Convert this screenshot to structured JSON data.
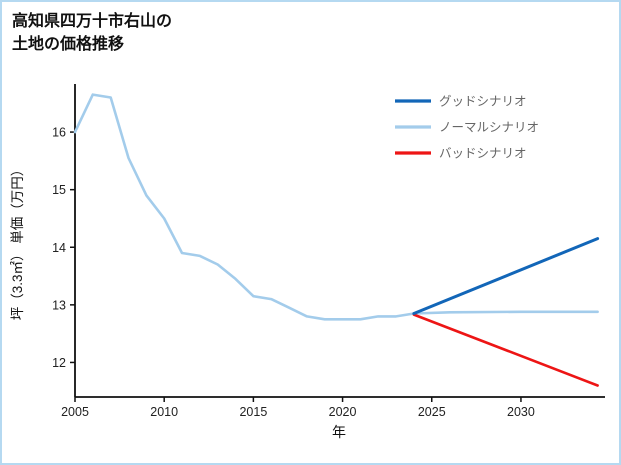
{
  "title": {
    "line1": "高知県四万十市右山の",
    "line2": "土地の価格推移"
  },
  "chart_data": {
    "type": "line",
    "title": "高知県四万十市右山の土地の価格推移",
    "xlabel": "年",
    "ylabel": "坪（3.3㎡） 単価（万円）",
    "xlim": [
      2005,
      2034.6
    ],
    "ylim": [
      11.4,
      16.8
    ],
    "xticks": [
      2005,
      2010,
      2015,
      2020,
      2025,
      2030
    ],
    "yticks": [
      12,
      13,
      14,
      15,
      16
    ],
    "grid": false,
    "legend_position": "upper right",
    "series": [
      {
        "name": "グッドシナリオ",
        "color": "#1266b8",
        "width": 3,
        "x": [
          2024,
          2034.3
        ],
        "y": [
          12.85,
          14.15
        ]
      },
      {
        "name": "ノーマルシナリオ",
        "color": "#a3cceb",
        "width": 2.6,
        "x": [
          2005,
          2006,
          2007,
          2008,
          2009,
          2010,
          2011,
          2012,
          2013,
          2014,
          2015,
          2016,
          2017,
          2018,
          2019,
          2020,
          2021,
          2022,
          2023,
          2024,
          2026,
          2030,
          2034.3
        ],
        "y": [
          16.0,
          16.65,
          16.6,
          15.55,
          14.9,
          14.5,
          13.9,
          13.85,
          13.7,
          13.45,
          13.15,
          13.1,
          12.95,
          12.8,
          12.75,
          12.75,
          12.75,
          12.8,
          12.8,
          12.85,
          12.87,
          12.88,
          12.88
        ]
      },
      {
        "name": "バッドシナリオ",
        "color": "#ed1515",
        "width": 2.6,
        "x": [
          2024,
          2034.3
        ],
        "y": [
          12.83,
          11.6
        ]
      }
    ]
  }
}
